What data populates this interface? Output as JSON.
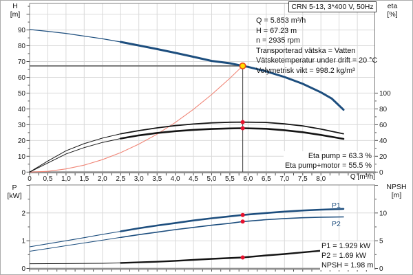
{
  "title_box": "CRN 5-13, 3*400 V, 50Hz",
  "info_lines": [
    "Q = 5.853 m³/h",
    "H = 67.23 m",
    "n = 2935 rpm",
    "Transporterad vätska = Vatten",
    "Vätsketemperatur under drift = 20 °C",
    "Volymetrisk vikt = 998.2 kg/m³"
  ],
  "colors": {
    "curve_blue": "#1d4e7e",
    "curve_black": "#141414",
    "system_curve_red": "#f08576",
    "marker_red": "#e8112d",
    "duty_fill_yellow": "#ffdf00",
    "duty_ring_orange": "#ec4a12",
    "grid": "#d9d9d9",
    "frame": "#7f7f7f"
  },
  "chart_data": [
    {
      "type": "line",
      "panel": "head-and-efficiency",
      "x": {
        "label": "Q [m³/h]",
        "min": 0,
        "max": 9.5,
        "tick_step": 0.5,
        "tick_labels": [
          "0",
          "0,5",
          "1,0",
          "1,5",
          "2,0",
          "2,5",
          "3,0",
          "3,5",
          "4,0",
          "4,5",
          "5,0",
          "5,5",
          "6,0",
          "6,5",
          "7,0",
          "7,5",
          "8,0"
        ]
      },
      "y_left": {
        "name": "H",
        "unit": "[m]",
        "min": 0,
        "max": 106,
        "tick_step": 10,
        "tick_labels": [
          "0",
          "10",
          "20",
          "30",
          "40",
          "50",
          "60",
          "70",
          "80",
          "90"
        ]
      },
      "y_right": {
        "name": "eta",
        "unit": "[%]",
        "min": 0,
        "max": 100,
        "tick_step": 20,
        "tick_labels": [
          "0",
          "20",
          "40",
          "60",
          "80",
          "100"
        ]
      },
      "duty_point": {
        "q": 5.853,
        "h": 67.23
      },
      "annotations": [
        "Eta pump = 63.3 %",
        "Eta pump+motor = 55.5 %"
      ],
      "markers": [
        {
          "q": 5.853,
          "v": 63.3,
          "axis": "eta"
        },
        {
          "q": 5.853,
          "v": 55.5,
          "axis": "eta"
        }
      ],
      "series": [
        {
          "name": "System curve",
          "axis": "H",
          "color": "#f08576",
          "points": [
            [
              0,
              0
            ],
            [
              0.5,
              0.5
            ],
            [
              1,
              2
            ],
            [
              1.5,
              4.4
            ],
            [
              2,
              7.9
            ],
            [
              2.5,
              12.3
            ],
            [
              3,
              17.7
            ],
            [
              3.5,
              24
            ],
            [
              4,
              31.4
            ],
            [
              4.5,
              39.7
            ],
            [
              5,
              49.1
            ],
            [
              5.5,
              59.4
            ],
            [
              5.853,
              67.23
            ]
          ]
        },
        {
          "name": "Eta pump",
          "axis": "eta",
          "color": "#141414",
          "split": 2.5,
          "points": [
            [
              0,
              0
            ],
            [
              0.5,
              14
            ],
            [
              1,
              27
            ],
            [
              1.5,
              36
            ],
            [
              2,
              43
            ],
            [
              2.5,
              48.5
            ],
            [
              3,
              52.5
            ],
            [
              3.5,
              56
            ],
            [
              4,
              58.8
            ],
            [
              4.5,
              60.8
            ],
            [
              5,
              62.3
            ],
            [
              5.5,
              63.1
            ],
            [
              5.853,
              63.3
            ],
            [
              6.5,
              62.8
            ],
            [
              7,
              61
            ],
            [
              7.5,
              58.5
            ],
            [
              8,
              54.5
            ],
            [
              8.62,
              48.5
            ]
          ]
        },
        {
          "name": "Eta pump+motor",
          "axis": "eta",
          "color": "#141414",
          "split": 2.5,
          "points": [
            [
              0,
              0
            ],
            [
              0.5,
              11.5
            ],
            [
              1,
              23
            ],
            [
              1.5,
              31
            ],
            [
              2,
              37.5
            ],
            [
              2.5,
              42.5
            ],
            [
              3,
              46.5
            ],
            [
              3.5,
              49.5
            ],
            [
              4,
              51.8
            ],
            [
              4.5,
              53.4
            ],
            [
              5,
              54.6
            ],
            [
              5.5,
              55.3
            ],
            [
              5.853,
              55.5
            ],
            [
              6.5,
              54.8
            ],
            [
              7,
              53
            ],
            [
              7.5,
              50.5
            ],
            [
              8,
              47
            ],
            [
              8.62,
              42
            ]
          ]
        },
        {
          "name": "QH",
          "axis": "H",
          "color": "#1d4e7e",
          "split": 2.5,
          "points": [
            [
              0,
              90.3
            ],
            [
              0.5,
              89.1
            ],
            [
              1,
              87.8
            ],
            [
              1.5,
              86.1
            ],
            [
              2,
              84.4
            ],
            [
              2.5,
              82.4
            ],
            [
              3,
              80.2
            ],
            [
              3.5,
              77.9
            ],
            [
              4,
              75.5
            ],
            [
              4.5,
              73
            ],
            [
              5,
              70.4
            ],
            [
              5.5,
              68.9
            ],
            [
              5.853,
              67.23
            ],
            [
              6,
              66.6
            ],
            [
              6.5,
              63.8
            ],
            [
              7,
              60.2
            ],
            [
              7.5,
              55.9
            ],
            [
              8,
              50.5
            ],
            [
              8.3,
              46.5
            ],
            [
              8.62,
              39.5
            ]
          ]
        }
      ]
    },
    {
      "type": "line",
      "panel": "power-and-npsh",
      "x": {
        "label": "Q [m³/h]",
        "min": 0,
        "max": 9.5,
        "tick_step": 0.5,
        "tick_labels": []
      },
      "y_left": {
        "name": "P",
        "unit": "[kW]",
        "min": 0,
        "max": 3,
        "tick_step": 1,
        "tick_labels": [
          "0",
          "1",
          "2"
        ]
      },
      "y_right": {
        "name": "NPSH",
        "unit": "[m]",
        "min": 0,
        "max": 15,
        "tick_step": 5,
        "tick_labels": [
          "0",
          "5",
          "10"
        ]
      },
      "annotations": [
        "P1 = 1.929 kW",
        "P2 = 1.69 kW",
        "NPSH = 1.98 m"
      ],
      "markers": [
        {
          "q": 5.853,
          "v": 1.929,
          "axis": "P"
        },
        {
          "q": 5.853,
          "v": 1.69,
          "axis": "P"
        },
        {
          "q": 5.853,
          "v": 1.98,
          "axis": "NPSH"
        }
      ],
      "series": [
        {
          "name": "P1",
          "axis": "P",
          "color": "#1d4e7e",
          "split": 2.5,
          "points": [
            [
              0,
              0.78
            ],
            [
              0.5,
              0.89
            ],
            [
              1,
              1.0
            ],
            [
              1.5,
              1.11
            ],
            [
              2,
              1.23
            ],
            [
              2.5,
              1.34
            ],
            [
              3,
              1.45
            ],
            [
              3.5,
              1.55
            ],
            [
              4,
              1.64
            ],
            [
              4.5,
              1.73
            ],
            [
              5,
              1.81
            ],
            [
              5.5,
              1.88
            ],
            [
              5.853,
              1.929
            ],
            [
              6.5,
              2.0
            ],
            [
              7,
              2.05
            ],
            [
              7.5,
              2.09
            ],
            [
              8,
              2.12
            ],
            [
              8.62,
              2.15
            ]
          ]
        },
        {
          "name": "P2",
          "axis": "P",
          "color": "#1d4e7e",
          "split": 2.5,
          "points": [
            [
              0,
              0.62
            ],
            [
              0.5,
              0.72
            ],
            [
              1,
              0.82
            ],
            [
              1.5,
              0.92
            ],
            [
              2,
              1.02
            ],
            [
              2.5,
              1.12
            ],
            [
              3,
              1.22
            ],
            [
              3.5,
              1.31
            ],
            [
              4,
              1.4
            ],
            [
              4.5,
              1.48
            ],
            [
              5,
              1.56
            ],
            [
              5.5,
              1.63
            ],
            [
              5.853,
              1.69
            ],
            [
              6.5,
              1.76
            ],
            [
              7,
              1.8
            ],
            [
              7.5,
              1.83
            ],
            [
              8,
              1.85
            ],
            [
              8.62,
              1.86
            ]
          ]
        },
        {
          "name": "NPSH",
          "axis": "NPSH",
          "color": "#141414",
          "split": 2.5,
          "points": [
            [
              0,
              0.85
            ],
            [
              1,
              0.88
            ],
            [
              2,
              0.93
            ],
            [
              2.5,
              1.0
            ],
            [
              3,
              1.1
            ],
            [
              3.5,
              1.22
            ],
            [
              4,
              1.37
            ],
            [
              4.5,
              1.55
            ],
            [
              5,
              1.73
            ],
            [
              5.853,
              1.98
            ],
            [
              6.5,
              2.35
            ],
            [
              7,
              2.6
            ],
            [
              7.5,
              2.9
            ],
            [
              8,
              3.2
            ],
            [
              8.62,
              3.7
            ]
          ]
        }
      ]
    }
  ]
}
